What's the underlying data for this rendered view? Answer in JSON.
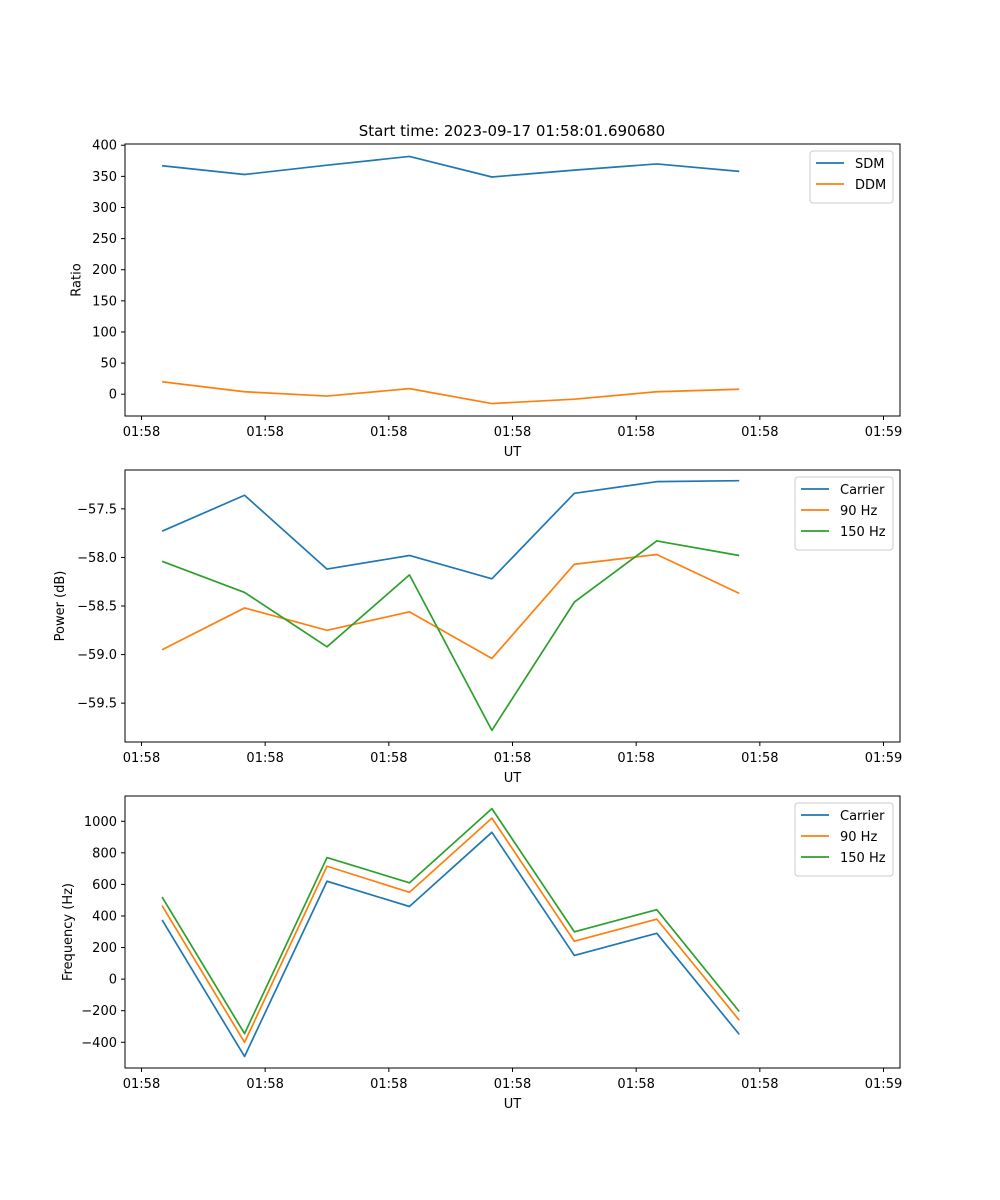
{
  "figure_title": "Start time: 2023-09-17 01:58:01.690680",
  "colors": {
    "blue": "#1f77b4",
    "orange": "#ff7f0e",
    "green": "#2ca02c",
    "axis": "#000000",
    "legend_border": "#cccccc"
  },
  "chart_data": [
    {
      "type": "line",
      "title": "Start time: 2023-09-17 01:58:01.690680",
      "xlabel": "UT",
      "ylabel": "Ratio",
      "x_index": [
        1,
        2,
        3,
        4,
        5,
        6,
        7,
        8
      ],
      "xlim": [
        0.55,
        9.95
      ],
      "x_ticks": [
        0.75,
        2.25,
        3.75,
        5.25,
        6.75,
        8.25,
        9.75
      ],
      "x_tick_labels": [
        "01:58",
        "01:58",
        "01:58",
        "01:58",
        "01:58",
        "01:58",
        "01:59"
      ],
      "ylim": [
        -35,
        402
      ],
      "y_ticks": [
        0,
        50,
        100,
        150,
        200,
        250,
        300,
        350,
        400
      ],
      "y_tick_labels": [
        "0",
        "50",
        "100",
        "150",
        "200",
        "250",
        "300",
        "350",
        "400"
      ],
      "legend_position": "top-right",
      "series": [
        {
          "name": "SDM",
          "color": "#1f77b4",
          "values": [
            367,
            353,
            368,
            382,
            349,
            360,
            370,
            358
          ]
        },
        {
          "name": "DDM",
          "color": "#ff7f0e",
          "values": [
            20,
            4,
            -3,
            9,
            -15,
            -8,
            4,
            8
          ]
        }
      ]
    },
    {
      "type": "line",
      "title": "",
      "xlabel": "UT",
      "ylabel": "Power (dB)",
      "x_index": [
        1,
        2,
        3,
        4,
        5,
        6,
        7,
        8
      ],
      "xlim": [
        0.55,
        9.95
      ],
      "x_ticks": [
        0.75,
        2.25,
        3.75,
        5.25,
        6.75,
        8.25,
        9.75
      ],
      "x_tick_labels": [
        "01:58",
        "01:58",
        "01:58",
        "01:58",
        "01:58",
        "01:58",
        "01:59"
      ],
      "ylim": [
        -59.9,
        -57.1
      ],
      "y_ticks": [
        -59.5,
        -59.0,
        -58.5,
        -58.0,
        -57.5
      ],
      "y_tick_labels": [
        "−59.5",
        "−59.0",
        "−58.5",
        "−58.0",
        "−57.5"
      ],
      "legend_position": "top-right",
      "series": [
        {
          "name": "Carrier",
          "color": "#1f77b4",
          "values": [
            -57.73,
            -57.36,
            -58.12,
            -57.98,
            -58.22,
            -57.34,
            -57.22,
            -57.21
          ]
        },
        {
          "name": "90 Hz",
          "color": "#ff7f0e",
          "values": [
            -58.95,
            -58.52,
            -58.75,
            -58.56,
            -59.04,
            -58.07,
            -57.97,
            -58.37
          ]
        },
        {
          "name": "150 Hz",
          "color": "#2ca02c",
          "values": [
            -58.04,
            -58.36,
            -58.92,
            -58.18,
            -59.78,
            -58.46,
            -57.83,
            -57.98
          ]
        }
      ]
    },
    {
      "type": "line",
      "title": "",
      "xlabel": "UT",
      "ylabel": "Frequency (Hz)",
      "x_index": [
        1,
        2,
        3,
        4,
        5,
        6,
        7,
        8
      ],
      "xlim": [
        0.55,
        9.95
      ],
      "x_ticks": [
        0.75,
        2.25,
        3.75,
        5.25,
        6.75,
        8.25,
        9.75
      ],
      "x_tick_labels": [
        "01:58",
        "01:58",
        "01:58",
        "01:58",
        "01:58",
        "01:58",
        "01:59"
      ],
      "ylim": [
        -563,
        1160
      ],
      "y_ticks": [
        -400,
        -200,
        0,
        200,
        400,
        600,
        800,
        1000
      ],
      "y_tick_labels": [
        "−400",
        "−200",
        "0",
        "200",
        "400",
        "600",
        "800",
        "1000"
      ],
      "legend_position": "top-right",
      "series": [
        {
          "name": "Carrier",
          "color": "#1f77b4",
          "values": [
            375,
            -490,
            620,
            460,
            930,
            150,
            290,
            -350
          ]
        },
        {
          "name": "90 Hz",
          "color": "#ff7f0e",
          "values": [
            465,
            -400,
            715,
            550,
            1020,
            240,
            380,
            -260
          ]
        },
        {
          "name": "150 Hz",
          "color": "#2ca02c",
          "values": [
            520,
            -345,
            770,
            610,
            1080,
            300,
            440,
            -205
          ]
        }
      ]
    }
  ]
}
